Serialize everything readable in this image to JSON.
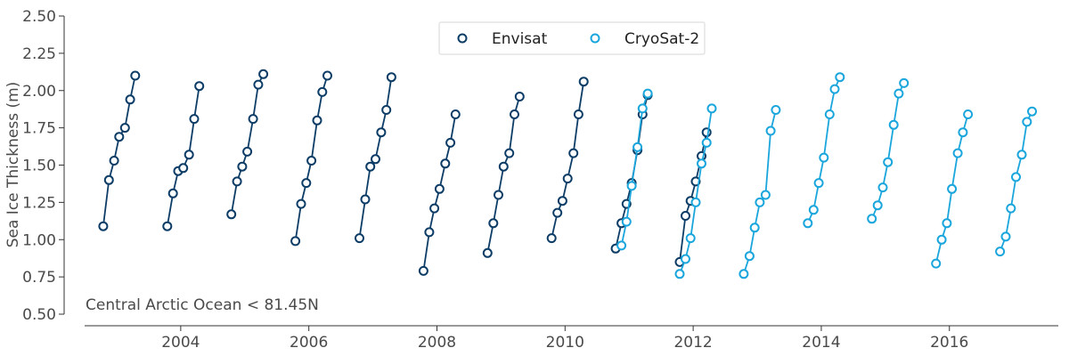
{
  "chart_data": {
    "type": "line",
    "ylabel": "Sea Ice Thickness (m)",
    "xlabel": "",
    "annotation": "Central Arctic Ocean < 81.45N",
    "ylim": [
      0.5,
      2.5
    ],
    "xlim": [
      2002.5,
      2017.7
    ],
    "y_ticks": [
      "0.50",
      "0.75",
      "1.00",
      "1.25",
      "1.50",
      "1.75",
      "2.00",
      "2.25",
      "2.50"
    ],
    "x_ticks": [
      "2004",
      "2006",
      "2008",
      "2010",
      "2012",
      "2014",
      "2016"
    ],
    "legend": {
      "placement": "top-center",
      "entries": [
        "Envisat",
        "CryoSat-2"
      ]
    },
    "grid": false,
    "series": [
      {
        "name": "Envisat",
        "color": "#0d3d66",
        "segments": [
          [
            [
              2002.79,
              1.09
            ],
            [
              2002.88,
              1.4
            ],
            [
              2002.96,
              1.53
            ],
            [
              2003.04,
              1.69
            ],
            [
              2003.13,
              1.75
            ],
            [
              2003.21,
              1.94
            ],
            [
              2003.29,
              2.1
            ]
          ],
          [
            [
              2003.79,
              1.09
            ],
            [
              2003.88,
              1.31
            ],
            [
              2003.96,
              1.46
            ],
            [
              2004.04,
              1.48
            ],
            [
              2004.13,
              1.57
            ],
            [
              2004.21,
              1.81
            ],
            [
              2004.29,
              2.03
            ]
          ],
          [
            [
              2004.79,
              1.17
            ],
            [
              2004.88,
              1.39
            ],
            [
              2004.96,
              1.49
            ],
            [
              2005.04,
              1.59
            ],
            [
              2005.13,
              1.81
            ],
            [
              2005.21,
              2.04
            ],
            [
              2005.29,
              2.11
            ]
          ],
          [
            [
              2005.79,
              0.99
            ],
            [
              2005.88,
              1.24
            ],
            [
              2005.96,
              1.38
            ],
            [
              2006.04,
              1.53
            ],
            [
              2006.13,
              1.8
            ],
            [
              2006.21,
              1.99
            ],
            [
              2006.29,
              2.1
            ]
          ],
          [
            [
              2006.79,
              1.01
            ],
            [
              2006.88,
              1.27
            ],
            [
              2006.96,
              1.49
            ],
            [
              2007.04,
              1.54
            ],
            [
              2007.13,
              1.72
            ],
            [
              2007.21,
              1.87
            ],
            [
              2007.29,
              2.09
            ]
          ],
          [
            [
              2007.79,
              0.79
            ],
            [
              2007.88,
              1.05
            ],
            [
              2007.96,
              1.21
            ],
            [
              2008.04,
              1.34
            ],
            [
              2008.13,
              1.51
            ],
            [
              2008.21,
              1.65
            ],
            [
              2008.29,
              1.84
            ]
          ],
          [
            [
              2008.79,
              0.91
            ],
            [
              2008.88,
              1.11
            ],
            [
              2008.96,
              1.3
            ],
            [
              2009.04,
              1.49
            ],
            [
              2009.13,
              1.58
            ],
            [
              2009.21,
              1.84
            ],
            [
              2009.29,
              1.96
            ]
          ],
          [
            [
              2009.79,
              1.01
            ],
            [
              2009.88,
              1.18
            ],
            [
              2009.96,
              1.26
            ],
            [
              2010.04,
              1.41
            ],
            [
              2010.13,
              1.58
            ],
            [
              2010.21,
              1.84
            ],
            [
              2010.29,
              2.06
            ]
          ],
          [
            [
              2010.79,
              0.94
            ],
            [
              2010.88,
              1.11
            ],
            [
              2010.96,
              1.24
            ],
            [
              2011.04,
              1.38
            ],
            [
              2011.13,
              1.6
            ],
            [
              2011.21,
              1.84
            ],
            [
              2011.29,
              1.97
            ]
          ],
          [
            [
              2011.79,
              0.85
            ],
            [
              2011.88,
              1.16
            ],
            [
              2011.96,
              1.26
            ],
            [
              2012.04,
              1.39
            ],
            [
              2012.13,
              1.56
            ],
            [
              2012.21,
              1.72
            ]
          ]
        ]
      },
      {
        "name": "CryoSat-2",
        "color": "#1aa6dc",
        "segments": [
          [
            [
              2010.88,
              0.96
            ],
            [
              2010.96,
              1.12
            ],
            [
              2011.04,
              1.36
            ],
            [
              2011.13,
              1.62
            ],
            [
              2011.21,
              1.88
            ],
            [
              2011.29,
              1.98
            ]
          ],
          [
            [
              2011.79,
              0.77
            ],
            [
              2011.88,
              0.87
            ],
            [
              2011.96,
              1.01
            ],
            [
              2012.04,
              1.25
            ],
            [
              2012.13,
              1.51
            ],
            [
              2012.21,
              1.65
            ],
            [
              2012.29,
              1.88
            ]
          ],
          [
            [
              2012.79,
              0.77
            ],
            [
              2012.88,
              0.89
            ],
            [
              2012.96,
              1.08
            ],
            [
              2013.04,
              1.25
            ],
            [
              2013.13,
              1.3
            ],
            [
              2013.21,
              1.73
            ],
            [
              2013.29,
              1.87
            ]
          ],
          [
            [
              2013.79,
              1.11
            ],
            [
              2013.88,
              1.2
            ],
            [
              2013.96,
              1.38
            ],
            [
              2014.04,
              1.55
            ],
            [
              2014.13,
              1.84
            ],
            [
              2014.21,
              2.01
            ],
            [
              2014.29,
              2.09
            ]
          ],
          [
            [
              2014.79,
              1.14
            ],
            [
              2014.88,
              1.23
            ],
            [
              2014.96,
              1.35
            ],
            [
              2015.04,
              1.52
            ],
            [
              2015.13,
              1.77
            ],
            [
              2015.21,
              1.98
            ],
            [
              2015.29,
              2.05
            ]
          ],
          [
            [
              2015.79,
              0.84
            ],
            [
              2015.88,
              1.0
            ],
            [
              2015.96,
              1.11
            ],
            [
              2016.04,
              1.34
            ],
            [
              2016.13,
              1.58
            ],
            [
              2016.21,
              1.72
            ],
            [
              2016.29,
              1.84
            ]
          ],
          [
            [
              2016.79,
              0.92
            ],
            [
              2016.88,
              1.02
            ],
            [
              2016.96,
              1.21
            ],
            [
              2017.04,
              1.42
            ],
            [
              2017.13,
              1.57
            ],
            [
              2017.21,
              1.79
            ],
            [
              2017.29,
              1.86
            ]
          ]
        ]
      }
    ]
  }
}
